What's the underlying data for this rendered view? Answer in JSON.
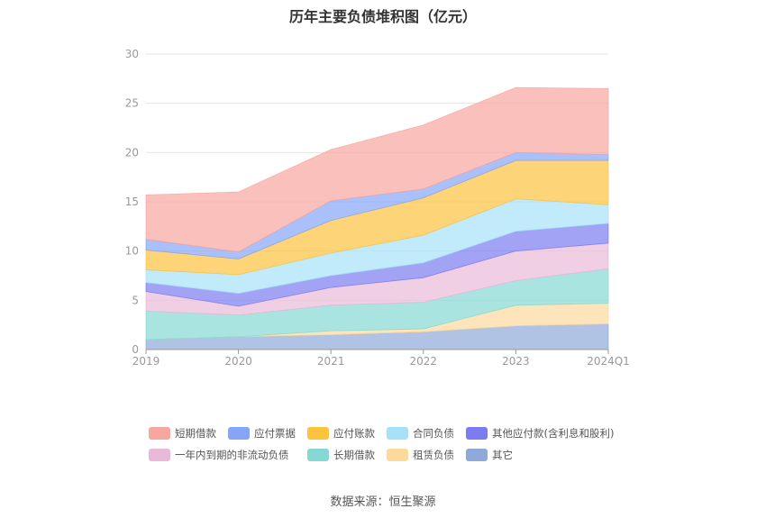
{
  "chart_data": {
    "type": "area",
    "stacked": true,
    "title": "历年主要负债堆积图（亿元）",
    "categories": [
      "2019",
      "2020",
      "2021",
      "2022",
      "2023",
      "2024Q1"
    ],
    "ylim": [
      0,
      30
    ],
    "yticks": [
      0,
      5,
      10,
      15,
      20,
      25,
      30
    ],
    "grid": true,
    "legend_position": "bottom",
    "series": [
      {
        "name": "其它",
        "color": "#8fa9d8",
        "values": [
          1.0,
          1.3,
          1.5,
          1.8,
          2.4,
          2.6
        ]
      },
      {
        "name": "租赁负债",
        "color": "#fdd99c",
        "values": [
          0.0,
          0.0,
          0.4,
          0.3,
          2.1,
          2.1
        ]
      },
      {
        "name": "长期借款",
        "color": "#86d9d3",
        "values": [
          2.9,
          2.2,
          2.6,
          2.7,
          2.5,
          3.5
        ]
      },
      {
        "name": "一年内到期的非流动负债",
        "color": "#e9b9d9",
        "values": [
          2.0,
          0.9,
          1.8,
          2.5,
          3.0,
          2.6
        ]
      },
      {
        "name": "其他应付款(含利息和股利)",
        "color": "#7b7cf0",
        "values": [
          0.9,
          1.3,
          1.2,
          1.5,
          2.0,
          2.0
        ]
      },
      {
        "name": "合同负债",
        "color": "#a7e1f9",
        "values": [
          1.3,
          1.9,
          2.3,
          2.8,
          3.3,
          1.9
        ]
      },
      {
        "name": "应付账款",
        "color": "#fcc33f",
        "values": [
          2.0,
          1.6,
          3.3,
          3.8,
          3.9,
          4.5
        ]
      },
      {
        "name": "应付票据",
        "color": "#86a5f9",
        "values": [
          1.1,
          0.7,
          2.0,
          0.9,
          0.8,
          0.6
        ]
      },
      {
        "name": "短期借款",
        "color": "#f8a7a0",
        "values": [
          4.5,
          6.1,
          5.2,
          6.5,
          6.6,
          6.7
        ]
      }
    ]
  },
  "legend": {
    "rows": [
      [
        "短期借款",
        "应付票据",
        "应付账款",
        "合同负债",
        "其他应付款(含利息和股利)"
      ],
      [
        "一年内到期的非流动负债",
        "长期借款",
        "租赁负债",
        "其它"
      ]
    ]
  },
  "source": "数据来源：恒生聚源"
}
